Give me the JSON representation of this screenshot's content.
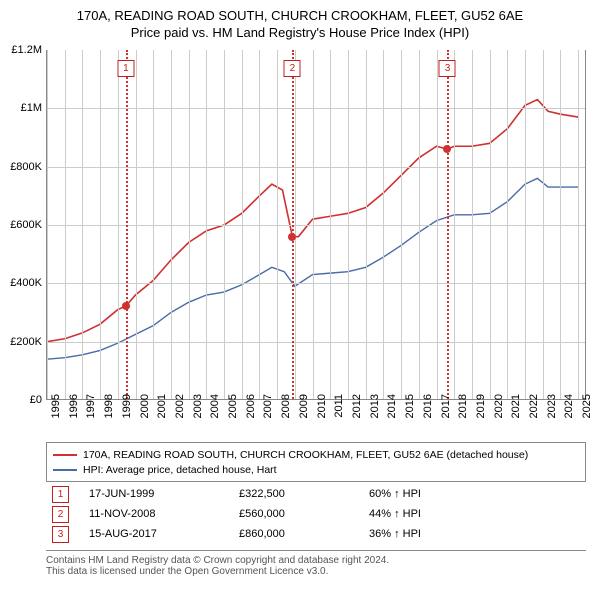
{
  "title": {
    "line1": "170A, READING ROAD SOUTH, CHURCH CROOKHAM, FLEET, GU52 6AE",
    "line2": "Price paid vs. HM Land Registry's House Price Index (HPI)"
  },
  "chart": {
    "type": "line",
    "background_color": "#ffffff",
    "grid_color": "#cccccc",
    "border_color": "#888888",
    "x": {
      "min": 1995,
      "max": 2025.5,
      "ticks": [
        1995,
        1996,
        1997,
        1998,
        1999,
        2000,
        2001,
        2002,
        2003,
        2004,
        2005,
        2006,
        2007,
        2008,
        2009,
        2010,
        2011,
        2012,
        2013,
        2014,
        2015,
        2016,
        2017,
        2018,
        2019,
        2020,
        2021,
        2022,
        2023,
        2024,
        2025
      ]
    },
    "y": {
      "min": 0,
      "max": 1200000,
      "ticks": [
        0,
        200000,
        400000,
        600000,
        800000,
        1000000,
        1200000
      ],
      "tick_labels": [
        "£0",
        "£200K",
        "£400K",
        "£600K",
        "£800K",
        "£1M",
        "£1.2M"
      ]
    },
    "series": [
      {
        "name": "price_paid",
        "label": "170A, READING ROAD SOUTH, CHURCH CROOKHAM, FLEET, GU52 6AE (detached house)",
        "color": "#d03030",
        "line_width": 1.6,
        "points": [
          [
            1995.0,
            200000
          ],
          [
            1996.0,
            210000
          ],
          [
            1997.0,
            230000
          ],
          [
            1998.0,
            260000
          ],
          [
            1999.0,
            310000
          ],
          [
            1999.46,
            322500
          ],
          [
            2000.0,
            360000
          ],
          [
            2001.0,
            410000
          ],
          [
            2002.0,
            480000
          ],
          [
            2003.0,
            540000
          ],
          [
            2004.0,
            580000
          ],
          [
            2005.0,
            600000
          ],
          [
            2006.0,
            640000
          ],
          [
            2007.0,
            700000
          ],
          [
            2007.7,
            740000
          ],
          [
            2008.3,
            720000
          ],
          [
            2008.86,
            560000
          ],
          [
            2009.2,
            560000
          ],
          [
            2010.0,
            620000
          ],
          [
            2011.0,
            630000
          ],
          [
            2012.0,
            640000
          ],
          [
            2013.0,
            660000
          ],
          [
            2014.0,
            710000
          ],
          [
            2015.0,
            770000
          ],
          [
            2016.0,
            830000
          ],
          [
            2017.0,
            870000
          ],
          [
            2017.62,
            860000
          ],
          [
            2018.0,
            870000
          ],
          [
            2019.0,
            870000
          ],
          [
            2020.0,
            880000
          ],
          [
            2021.0,
            930000
          ],
          [
            2022.0,
            1010000
          ],
          [
            2022.7,
            1030000
          ],
          [
            2023.3,
            990000
          ],
          [
            2024.0,
            980000
          ],
          [
            2025.0,
            970000
          ]
        ]
      },
      {
        "name": "hpi",
        "label": "HPI: Average price, detached house, Hart",
        "color": "#4a6aa8",
        "line_width": 1.4,
        "points": [
          [
            1995.0,
            140000
          ],
          [
            1996.0,
            145000
          ],
          [
            1997.0,
            155000
          ],
          [
            1998.0,
            170000
          ],
          [
            1999.0,
            195000
          ],
          [
            2000.0,
            225000
          ],
          [
            2001.0,
            255000
          ],
          [
            2002.0,
            300000
          ],
          [
            2003.0,
            335000
          ],
          [
            2004.0,
            360000
          ],
          [
            2005.0,
            370000
          ],
          [
            2006.0,
            395000
          ],
          [
            2007.0,
            430000
          ],
          [
            2007.7,
            455000
          ],
          [
            2008.4,
            440000
          ],
          [
            2009.0,
            390000
          ],
          [
            2010.0,
            430000
          ],
          [
            2011.0,
            435000
          ],
          [
            2012.0,
            440000
          ],
          [
            2013.0,
            455000
          ],
          [
            2014.0,
            490000
          ],
          [
            2015.0,
            530000
          ],
          [
            2016.0,
            575000
          ],
          [
            2017.0,
            615000
          ],
          [
            2018.0,
            635000
          ],
          [
            2019.0,
            635000
          ],
          [
            2020.0,
            640000
          ],
          [
            2021.0,
            680000
          ],
          [
            2022.0,
            740000
          ],
          [
            2022.7,
            760000
          ],
          [
            2023.3,
            730000
          ],
          [
            2024.0,
            730000
          ],
          [
            2025.0,
            730000
          ]
        ]
      }
    ],
    "sale_markers": [
      {
        "num": "1",
        "x": 1999.46,
        "y": 322500
      },
      {
        "num": "2",
        "x": 2008.86,
        "y": 560000
      },
      {
        "num": "3",
        "x": 2017.62,
        "y": 860000
      }
    ],
    "marker_box_color": "#c22020",
    "marker_dot_color": "#d03030",
    "vline_color": "#d03030"
  },
  "legend": {
    "items": [
      {
        "color": "#d03030",
        "label": "170A, READING ROAD SOUTH, CHURCH CROOKHAM, FLEET, GU52 6AE (detached house)"
      },
      {
        "color": "#4a6aa8",
        "label": "HPI: Average price, detached house, Hart"
      }
    ]
  },
  "sales": [
    {
      "num": "1",
      "date": "17-JUN-1999",
      "price": "£322,500",
      "hpi": "60% ↑ HPI"
    },
    {
      "num": "2",
      "date": "11-NOV-2008",
      "price": "£560,000",
      "hpi": "44% ↑ HPI"
    },
    {
      "num": "3",
      "date": "15-AUG-2017",
      "price": "£860,000",
      "hpi": "36% ↑ HPI"
    }
  ],
  "attribution": {
    "line1": "Contains HM Land Registry data © Crown copyright and database right 2024.",
    "line2": "This data is licensed under the Open Government Licence v3.0."
  }
}
